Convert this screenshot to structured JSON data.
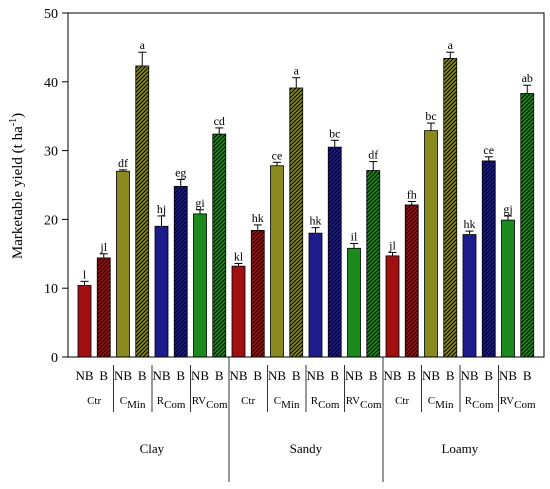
{
  "chart_data": {
    "type": "bar",
    "ylabel": {
      "main": "Marketable yield (t ha",
      "sup": "-1",
      "close": ")"
    },
    "ylim": [
      0,
      50
    ],
    "yticks": [
      0,
      10,
      20,
      30,
      40,
      50
    ],
    "grid": false,
    "colors": {
      "Ctr": "#a01010",
      "CMin": "#8a8a1e",
      "RCom": "#1c1c8c",
      "RVCom": "#1c8a1c"
    },
    "soils": [
      {
        "name": "Clay",
        "groups": [
          {
            "key": "Ctr",
            "label": "Ctr",
            "sub": "",
            "bars": [
              {
                "t": "NB",
                "v": 10.4,
                "e": 0.6,
                "sig": "l"
              },
              {
                "t": "B",
                "v": 14.4,
                "e": 0.6,
                "sig": "jl"
              }
            ]
          },
          {
            "key": "CMin",
            "label": "C",
            "sub": "Min",
            "bars": [
              {
                "t": "NB",
                "v": 27.0,
                "e": 0.2,
                "sig": "df"
              },
              {
                "t": "B",
                "v": 42.3,
                "e": 2.0,
                "sig": "a"
              }
            ]
          },
          {
            "key": "RCom",
            "label": "R",
            "sub": "Com",
            "bars": [
              {
                "t": "NB",
                "v": 19.0,
                "e": 1.5,
                "sig": "hj"
              },
              {
                "t": "B",
                "v": 24.8,
                "e": 1.0,
                "sig": "eg"
              }
            ]
          },
          {
            "key": "RVCom",
            "label": "RV",
            "sub": "Com",
            "bars": [
              {
                "t": "NB",
                "v": 20.8,
                "e": 0.6,
                "sig": "gi"
              },
              {
                "t": "B",
                "v": 32.4,
                "e": 0.9,
                "sig": "cd"
              }
            ]
          }
        ]
      },
      {
        "name": "Sandy",
        "groups": [
          {
            "key": "Ctr",
            "label": "Ctr",
            "sub": "",
            "bars": [
              {
                "t": "NB",
                "v": 13.2,
                "e": 0.4,
                "sig": "kl"
              },
              {
                "t": "B",
                "v": 18.4,
                "e": 0.8,
                "sig": "hk"
              }
            ]
          },
          {
            "key": "CMin",
            "label": "C",
            "sub": "Min",
            "bars": [
              {
                "t": "NB",
                "v": 27.8,
                "e": 0.5,
                "sig": "ce"
              },
              {
                "t": "B",
                "v": 39.1,
                "e": 1.5,
                "sig": "a"
              }
            ]
          },
          {
            "key": "RCom",
            "label": "R",
            "sub": "Com",
            "bars": [
              {
                "t": "NB",
                "v": 18.0,
                "e": 0.8,
                "sig": "hk"
              },
              {
                "t": "B",
                "v": 30.5,
                "e": 1.0,
                "sig": "bc"
              }
            ]
          },
          {
            "key": "RVCom",
            "label": "RV",
            "sub": "Com",
            "bars": [
              {
                "t": "NB",
                "v": 15.8,
                "e": 0.7,
                "sig": "il"
              },
              {
                "t": "B",
                "v": 27.1,
                "e": 1.3,
                "sig": "df"
              }
            ]
          }
        ]
      },
      {
        "name": "Loamy",
        "groups": [
          {
            "key": "Ctr",
            "label": "Ctr",
            "sub": "",
            "bars": [
              {
                "t": "NB",
                "v": 14.7,
                "e": 0.5,
                "sig": "jl"
              },
              {
                "t": "B",
                "v": 22.1,
                "e": 0.5,
                "sig": "fh"
              }
            ]
          },
          {
            "key": "CMin",
            "label": "C",
            "sub": "Min",
            "bars": [
              {
                "t": "NB",
                "v": 32.9,
                "e": 1.1,
                "sig": "bc"
              },
              {
                "t": "B",
                "v": 43.4,
                "e": 0.9,
                "sig": "a"
              }
            ]
          },
          {
            "key": "RCom",
            "label": "R",
            "sub": "Com",
            "bars": [
              {
                "t": "NB",
                "v": 17.8,
                "e": 0.5,
                "sig": "hk"
              },
              {
                "t": "B",
                "v": 28.5,
                "e": 0.6,
                "sig": "ce"
              }
            ]
          },
          {
            "key": "RVCom",
            "label": "RV",
            "sub": "Com",
            "bars": [
              {
                "t": "NB",
                "v": 19.9,
                "e": 0.6,
                "sig": "gj"
              },
              {
                "t": "B",
                "v": 38.3,
                "e": 1.2,
                "sig": "ab"
              }
            ]
          }
        ]
      }
    ]
  }
}
